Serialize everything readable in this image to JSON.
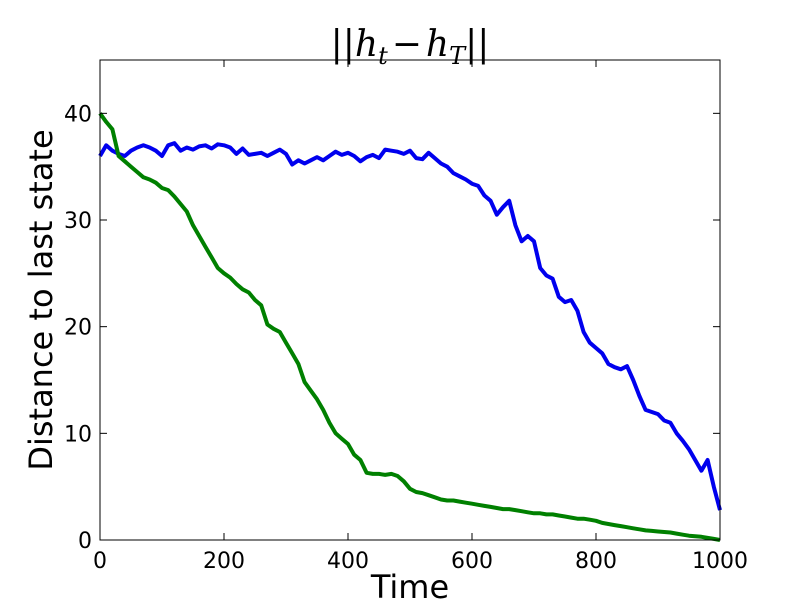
{
  "chart_data": {
    "type": "line",
    "title": {
      "bars_left": "||",
      "h1": "h",
      "sub1": "t",
      "minus": "−",
      "h2": "h",
      "sub2": "T",
      "bars_right": "||"
    },
    "xlabel": "Time",
    "ylabel": "Distance to last state",
    "xlim": [
      0,
      1000
    ],
    "ylim": [
      0,
      45
    ],
    "xticks": [
      0,
      200,
      400,
      600,
      800,
      1000
    ],
    "yticks": [
      0,
      10,
      20,
      30,
      40
    ],
    "grid": false,
    "series": [
      {
        "color": "#0000ee",
        "points": [
          [
            0,
            36
          ],
          [
            10,
            37
          ],
          [
            20,
            36.5
          ],
          [
            30,
            36.2
          ],
          [
            40,
            36
          ],
          [
            50,
            36.5
          ],
          [
            60,
            36.8
          ],
          [
            70,
            37
          ],
          [
            80,
            36.8
          ],
          [
            90,
            36.5
          ],
          [
            100,
            36
          ],
          [
            110,
            37
          ],
          [
            120,
            37.2
          ],
          [
            130,
            36.5
          ],
          [
            140,
            36.8
          ],
          [
            150,
            36.6
          ],
          [
            160,
            36.9
          ],
          [
            170,
            37
          ],
          [
            180,
            36.7
          ],
          [
            190,
            37.1
          ],
          [
            200,
            37
          ],
          [
            210,
            36.8
          ],
          [
            220,
            36.2
          ],
          [
            230,
            36.7
          ],
          [
            240,
            36.1
          ],
          [
            250,
            36.2
          ],
          [
            260,
            36.3
          ],
          [
            270,
            36
          ],
          [
            280,
            36.3
          ],
          [
            290,
            36.6
          ],
          [
            300,
            36.2
          ],
          [
            310,
            35.2
          ],
          [
            320,
            35.6
          ],
          [
            330,
            35.3
          ],
          [
            340,
            35.6
          ],
          [
            350,
            35.9
          ],
          [
            360,
            35.6
          ],
          [
            370,
            36
          ],
          [
            380,
            36.4
          ],
          [
            390,
            36.1
          ],
          [
            400,
            36.3
          ],
          [
            410,
            36
          ],
          [
            420,
            35.5
          ],
          [
            430,
            35.9
          ],
          [
            440,
            36.1
          ],
          [
            450,
            35.8
          ],
          [
            460,
            36.6
          ],
          [
            470,
            36.5
          ],
          [
            480,
            36.4
          ],
          [
            490,
            36.2
          ],
          [
            500,
            36.5
          ],
          [
            510,
            35.8
          ],
          [
            520,
            35.7
          ],
          [
            530,
            36.3
          ],
          [
            540,
            35.8
          ],
          [
            550,
            35.3
          ],
          [
            560,
            35
          ],
          [
            570,
            34.4
          ],
          [
            580,
            34.1
          ],
          [
            590,
            33.8
          ],
          [
            600,
            33.4
          ],
          [
            610,
            33.2
          ],
          [
            620,
            32.3
          ],
          [
            630,
            31.8
          ],
          [
            640,
            30.5
          ],
          [
            650,
            31.2
          ],
          [
            660,
            31.8
          ],
          [
            670,
            29.5
          ],
          [
            680,
            28
          ],
          [
            690,
            28.5
          ],
          [
            700,
            28
          ],
          [
            710,
            25.5
          ],
          [
            720,
            24.8
          ],
          [
            730,
            24.5
          ],
          [
            740,
            22.8
          ],
          [
            750,
            22.3
          ],
          [
            760,
            22.5
          ],
          [
            770,
            21.5
          ],
          [
            780,
            19.5
          ],
          [
            790,
            18.5
          ],
          [
            800,
            18
          ],
          [
            810,
            17.5
          ],
          [
            820,
            16.5
          ],
          [
            830,
            16.2
          ],
          [
            840,
            16
          ],
          [
            850,
            16.3
          ],
          [
            860,
            15
          ],
          [
            870,
            13.5
          ],
          [
            880,
            12.2
          ],
          [
            890,
            12
          ],
          [
            900,
            11.8
          ],
          [
            910,
            11.2
          ],
          [
            920,
            11
          ],
          [
            930,
            10
          ],
          [
            940,
            9.3
          ],
          [
            950,
            8.5
          ],
          [
            960,
            7.5
          ],
          [
            970,
            6.5
          ],
          [
            980,
            7.5
          ],
          [
            990,
            5
          ],
          [
            1000,
            2.8
          ]
        ]
      },
      {
        "color": "#008000",
        "points": [
          [
            0,
            40
          ],
          [
            10,
            39.2
          ],
          [
            20,
            38.5
          ],
          [
            30,
            36
          ],
          [
            40,
            35.5
          ],
          [
            50,
            35
          ],
          [
            60,
            34.5
          ],
          [
            70,
            34
          ],
          [
            80,
            33.8
          ],
          [
            90,
            33.5
          ],
          [
            100,
            33
          ],
          [
            110,
            32.8
          ],
          [
            120,
            32.2
          ],
          [
            130,
            31.5
          ],
          [
            140,
            30.8
          ],
          [
            150,
            29.5
          ],
          [
            160,
            28.5
          ],
          [
            170,
            27.5
          ],
          [
            180,
            26.5
          ],
          [
            190,
            25.5
          ],
          [
            200,
            25
          ],
          [
            210,
            24.6
          ],
          [
            220,
            24
          ],
          [
            230,
            23.5
          ],
          [
            240,
            23.2
          ],
          [
            250,
            22.5
          ],
          [
            260,
            22
          ],
          [
            270,
            20.2
          ],
          [
            280,
            19.8
          ],
          [
            290,
            19.5
          ],
          [
            300,
            18.5
          ],
          [
            310,
            17.5
          ],
          [
            320,
            16.5
          ],
          [
            330,
            14.8
          ],
          [
            340,
            14
          ],
          [
            350,
            13.2
          ],
          [
            360,
            12.2
          ],
          [
            370,
            11
          ],
          [
            380,
            10
          ],
          [
            390,
            9.5
          ],
          [
            400,
            9
          ],
          [
            410,
            8
          ],
          [
            420,
            7.5
          ],
          [
            430,
            6.3
          ],
          [
            440,
            6.2
          ],
          [
            450,
            6.2
          ],
          [
            460,
            6.1
          ],
          [
            470,
            6.2
          ],
          [
            480,
            6
          ],
          [
            490,
            5.5
          ],
          [
            500,
            4.8
          ],
          [
            510,
            4.5
          ],
          [
            520,
            4.4
          ],
          [
            530,
            4.2
          ],
          [
            540,
            4
          ],
          [
            550,
            3.8
          ],
          [
            560,
            3.7
          ],
          [
            570,
            3.7
          ],
          [
            580,
            3.6
          ],
          [
            590,
            3.5
          ],
          [
            600,
            3.4
          ],
          [
            610,
            3.3
          ],
          [
            620,
            3.2
          ],
          [
            630,
            3.1
          ],
          [
            640,
            3
          ],
          [
            650,
            2.9
          ],
          [
            660,
            2.9
          ],
          [
            670,
            2.8
          ],
          [
            680,
            2.7
          ],
          [
            690,
            2.6
          ],
          [
            700,
            2.5
          ],
          [
            710,
            2.5
          ],
          [
            720,
            2.4
          ],
          [
            730,
            2.4
          ],
          [
            740,
            2.3
          ],
          [
            750,
            2.2
          ],
          [
            760,
            2.1
          ],
          [
            770,
            2
          ],
          [
            780,
            2
          ],
          [
            790,
            1.9
          ],
          [
            800,
            1.8
          ],
          [
            810,
            1.6
          ],
          [
            820,
            1.5
          ],
          [
            830,
            1.4
          ],
          [
            840,
            1.3
          ],
          [
            850,
            1.2
          ],
          [
            860,
            1.1
          ],
          [
            870,
            1
          ],
          [
            880,
            0.9
          ],
          [
            890,
            0.85
          ],
          [
            900,
            0.8
          ],
          [
            910,
            0.75
          ],
          [
            920,
            0.7
          ],
          [
            930,
            0.6
          ],
          [
            940,
            0.5
          ],
          [
            950,
            0.4
          ],
          [
            960,
            0.35
          ],
          [
            970,
            0.3
          ],
          [
            980,
            0.2
          ],
          [
            990,
            0.1
          ],
          [
            1000,
            0
          ]
        ]
      }
    ]
  }
}
